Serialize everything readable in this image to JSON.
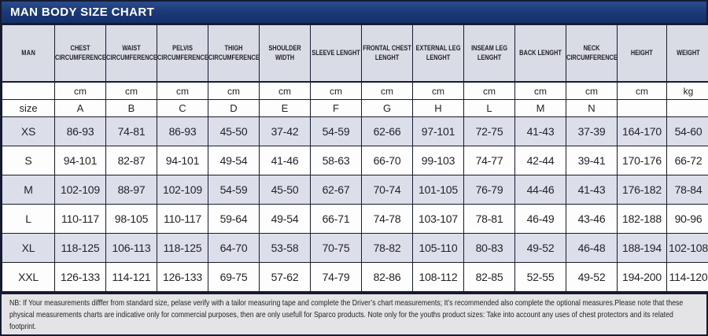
{
  "title": "MAN BODY SIZE CHART",
  "chart_data": {
    "type": "table",
    "title": "MAN BODY SIZE CHART",
    "corner_label": "MAN",
    "size_label": "size",
    "columns": [
      {
        "header": "CHEST CIRCUMFERENCE",
        "unit": "cm",
        "letter": "A"
      },
      {
        "header": "WAIST CIRCUMFERENCE",
        "unit": "cm",
        "letter": "B"
      },
      {
        "header": "PELVIS CIRCUMFERENCE",
        "unit": "cm",
        "letter": "C"
      },
      {
        "header": "THIGH CIRCUMFERENCE",
        "unit": "cm",
        "letter": "D"
      },
      {
        "header": "SHOULDER WIDTH",
        "unit": "cm",
        "letter": "E"
      },
      {
        "header": "SLEEVE LENGHT",
        "unit": "cm",
        "letter": "F"
      },
      {
        "header": "FRONTAL CHEST LENGHT",
        "unit": "cm",
        "letter": "G"
      },
      {
        "header": "EXTERNAL LEG LENGHT",
        "unit": "cm",
        "letter": "H"
      },
      {
        "header": "INSEAM LEG LENGHT",
        "unit": "cm",
        "letter": "L"
      },
      {
        "header": "BACK LENGHT",
        "unit": "cm",
        "letter": "M"
      },
      {
        "header": "NECK CIRCUMFERENCE",
        "unit": "cm",
        "letter": "N"
      },
      {
        "header": "HEIGHT",
        "unit": "cm",
        "letter": ""
      },
      {
        "header": "WEIGHT",
        "unit": "kg",
        "letter": ""
      }
    ],
    "rows": [
      {
        "size": "XS",
        "values": [
          "86-93",
          "74-81",
          "86-93",
          "45-50",
          "37-42",
          "54-59",
          "62-66",
          "97-101",
          "72-75",
          "41-43",
          "37-39",
          "164-170",
          "54-60"
        ]
      },
      {
        "size": "S",
        "values": [
          "94-101",
          "82-87",
          "94-101",
          "49-54",
          "41-46",
          "58-63",
          "66-70",
          "99-103",
          "74-77",
          "42-44",
          "39-41",
          "170-176",
          "66-72"
        ]
      },
      {
        "size": "M",
        "values": [
          "102-109",
          "88-97",
          "102-109",
          "54-59",
          "45-50",
          "62-67",
          "70-74",
          "101-105",
          "76-79",
          "44-46",
          "41-43",
          "176-182",
          "78-84"
        ]
      },
      {
        "size": "L",
        "values": [
          "110-117",
          "98-105",
          "110-117",
          "59-64",
          "49-54",
          "66-71",
          "74-78",
          "103-107",
          "78-81",
          "46-49",
          "43-46",
          "182-188",
          "90-96"
        ]
      },
      {
        "size": "XL",
        "values": [
          "118-125",
          "106-113",
          "118-125",
          "64-70",
          "53-58",
          "70-75",
          "78-82",
          "105-110",
          "80-83",
          "49-52",
          "46-48",
          "188-194",
          "102-108"
        ]
      },
      {
        "size": "XXL",
        "values": [
          "126-133",
          "114-121",
          "126-133",
          "69-75",
          "57-62",
          "74-79",
          "82-86",
          "108-112",
          "82-85",
          "52-55",
          "49-52",
          "194-200",
          "114-120"
        ]
      }
    ],
    "note": "NB: If Your measurements difffer from standard size, pelase verify with a tailor measuring tape and complete the Driver’s chart measurements; It’s recommended also complete the optional measures.Please note that these physical measurements charts are indicative only for commercial purposes, then are only usefull for Sparco products. Note only for the youths product sizes: Take into account any uses of chest protectors and its related footprint."
  },
  "colors": {
    "navy": "#1b3a78",
    "border": "#161b30",
    "header_bg": "#d9dbe5",
    "row_alt": "#dcdee9",
    "white_row": "#fdfdfe",
    "footer_bg": "#e4e4e6"
  }
}
